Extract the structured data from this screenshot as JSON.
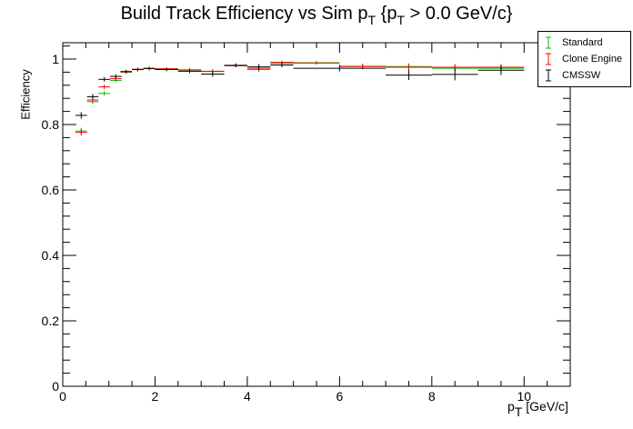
{
  "chart_data": {
    "type": "scatter",
    "title_main": "Build Track Efficiency vs Sim p",
    "title_sub1": "T",
    "title_mid": " {p",
    "title_sub2": "T",
    "title_end": " > 0.0 GeV/c}",
    "ylabel": "Efficiency",
    "xlabel_main": "p",
    "xlabel_sub": "T",
    "xlabel_unit": " [GeV/c]",
    "xlim": [
      0,
      11
    ],
    "ylim": [
      0,
      1.05
    ],
    "x_ticks": [
      "0",
      "2",
      "4",
      "6",
      "8",
      "10"
    ],
    "y_ticks": [
      "0",
      "0.2",
      "0.4",
      "0.6",
      "0.8",
      "1"
    ],
    "legend_position": "top-right outside",
    "series": [
      {
        "name": "Standard",
        "color": "#00bb00",
        "points": [
          {
            "x": 0.4,
            "xerr": 0.125,
            "y": 0.78,
            "yerr": 0.01
          },
          {
            "x": 0.65,
            "xerr": 0.125,
            "y": 0.87,
            "yerr": 0.008
          },
          {
            "x": 0.9,
            "xerr": 0.125,
            "y": 0.895,
            "yerr": 0.007
          },
          {
            "x": 1.15,
            "xerr": 0.125,
            "y": 0.935,
            "yerr": 0.006
          },
          {
            "x": 1.375,
            "xerr": 0.125,
            "y": 0.96,
            "yerr": 0.005
          },
          {
            "x": 1.625,
            "xerr": 0.125,
            "y": 0.968,
            "yerr": 0.005
          },
          {
            "x": 1.875,
            "xerr": 0.125,
            "y": 0.971,
            "yerr": 0.005
          },
          {
            "x": 2.25,
            "xerr": 0.25,
            "y": 0.97,
            "yerr": 0.004
          },
          {
            "x": 2.75,
            "xerr": 0.25,
            "y": 0.966,
            "yerr": 0.005
          },
          {
            "x": 3.25,
            "xerr": 0.25,
            "y": 0.962,
            "yerr": 0.006
          },
          {
            "x": 3.75,
            "xerr": 0.25,
            "y": 0.98,
            "yerr": 0.005
          },
          {
            "x": 4.25,
            "xerr": 0.25,
            "y": 0.968,
            "yerr": 0.008
          },
          {
            "x": 4.75,
            "xerr": 0.25,
            "y": 0.987,
            "yerr": 0.005
          },
          {
            "x": 5.5,
            "xerr": 0.5,
            "y": 0.989,
            "yerr": 0.005
          },
          {
            "x": 6.5,
            "xerr": 0.5,
            "y": 0.978,
            "yerr": 0.008
          },
          {
            "x": 7.5,
            "xerr": 0.5,
            "y": 0.977,
            "yerr": 0.01
          },
          {
            "x": 8.5,
            "xerr": 0.5,
            "y": 0.972,
            "yerr": 0.01
          },
          {
            "x": 9.5,
            "xerr": 0.5,
            "y": 0.972,
            "yerr": 0.01
          }
        ]
      },
      {
        "name": "Clone Engine",
        "color": "#ff0000",
        "points": [
          {
            "x": 0.4,
            "xerr": 0.125,
            "y": 0.776,
            "yerr": 0.01
          },
          {
            "x": 0.65,
            "xerr": 0.125,
            "y": 0.875,
            "yerr": 0.008
          },
          {
            "x": 0.9,
            "xerr": 0.125,
            "y": 0.915,
            "yerr": 0.007
          },
          {
            "x": 1.15,
            "xerr": 0.125,
            "y": 0.94,
            "yerr": 0.006
          },
          {
            "x": 1.375,
            "xerr": 0.125,
            "y": 0.961,
            "yerr": 0.005
          },
          {
            "x": 1.625,
            "xerr": 0.125,
            "y": 0.969,
            "yerr": 0.005
          },
          {
            "x": 1.875,
            "xerr": 0.125,
            "y": 0.972,
            "yerr": 0.005
          },
          {
            "x": 2.25,
            "xerr": 0.25,
            "y": 0.97,
            "yerr": 0.004
          },
          {
            "x": 2.75,
            "xerr": 0.25,
            "y": 0.967,
            "yerr": 0.005
          },
          {
            "x": 3.25,
            "xerr": 0.25,
            "y": 0.963,
            "yerr": 0.006
          },
          {
            "x": 3.75,
            "xerr": 0.25,
            "y": 0.98,
            "yerr": 0.005
          },
          {
            "x": 4.25,
            "xerr": 0.25,
            "y": 0.972,
            "yerr": 0.008
          },
          {
            "x": 4.75,
            "xerr": 0.25,
            "y": 0.99,
            "yerr": 0.005
          },
          {
            "x": 5.5,
            "xerr": 0.5,
            "y": 0.988,
            "yerr": 0.005
          },
          {
            "x": 6.5,
            "xerr": 0.5,
            "y": 0.977,
            "yerr": 0.008
          },
          {
            "x": 7.5,
            "xerr": 0.5,
            "y": 0.975,
            "yerr": 0.01
          },
          {
            "x": 8.5,
            "xerr": 0.5,
            "y": 0.975,
            "yerr": 0.01
          },
          {
            "x": 9.5,
            "xerr": 0.5,
            "y": 0.975,
            "yerr": 0.01
          }
        ]
      },
      {
        "name": "CMSSW",
        "color": "#000000",
        "points": [
          {
            "x": 0.4,
            "xerr": 0.125,
            "y": 0.828,
            "yerr": 0.01
          },
          {
            "x": 0.65,
            "xerr": 0.125,
            "y": 0.885,
            "yerr": 0.008
          },
          {
            "x": 0.9,
            "xerr": 0.125,
            "y": 0.938,
            "yerr": 0.007
          },
          {
            "x": 1.15,
            "xerr": 0.125,
            "y": 0.947,
            "yerr": 0.006
          },
          {
            "x": 1.375,
            "xerr": 0.125,
            "y": 0.962,
            "yerr": 0.005
          },
          {
            "x": 1.625,
            "xerr": 0.125,
            "y": 0.968,
            "yerr": 0.005
          },
          {
            "x": 1.875,
            "xerr": 0.125,
            "y": 0.971,
            "yerr": 0.005
          },
          {
            "x": 2.25,
            "xerr": 0.25,
            "y": 0.968,
            "yerr": 0.005
          },
          {
            "x": 2.75,
            "xerr": 0.25,
            "y": 0.963,
            "yerr": 0.006
          },
          {
            "x": 3.25,
            "xerr": 0.25,
            "y": 0.954,
            "yerr": 0.008
          },
          {
            "x": 3.75,
            "xerr": 0.25,
            "y": 0.981,
            "yerr": 0.006
          },
          {
            "x": 4.25,
            "xerr": 0.25,
            "y": 0.976,
            "yerr": 0.009
          },
          {
            "x": 4.75,
            "xerr": 0.25,
            "y": 0.982,
            "yerr": 0.007
          },
          {
            "x": 6.0,
            "xerr": 1.0,
            "y": 0.972,
            "yerr": 0.01
          },
          {
            "x": 7.5,
            "xerr": 0.5,
            "y": 0.951,
            "yerr": 0.015
          },
          {
            "x": 8.5,
            "xerr": 0.5,
            "y": 0.953,
            "yerr": 0.018
          },
          {
            "x": 9.5,
            "xerr": 0.5,
            "y": 0.966,
            "yerr": 0.015
          }
        ]
      }
    ]
  }
}
